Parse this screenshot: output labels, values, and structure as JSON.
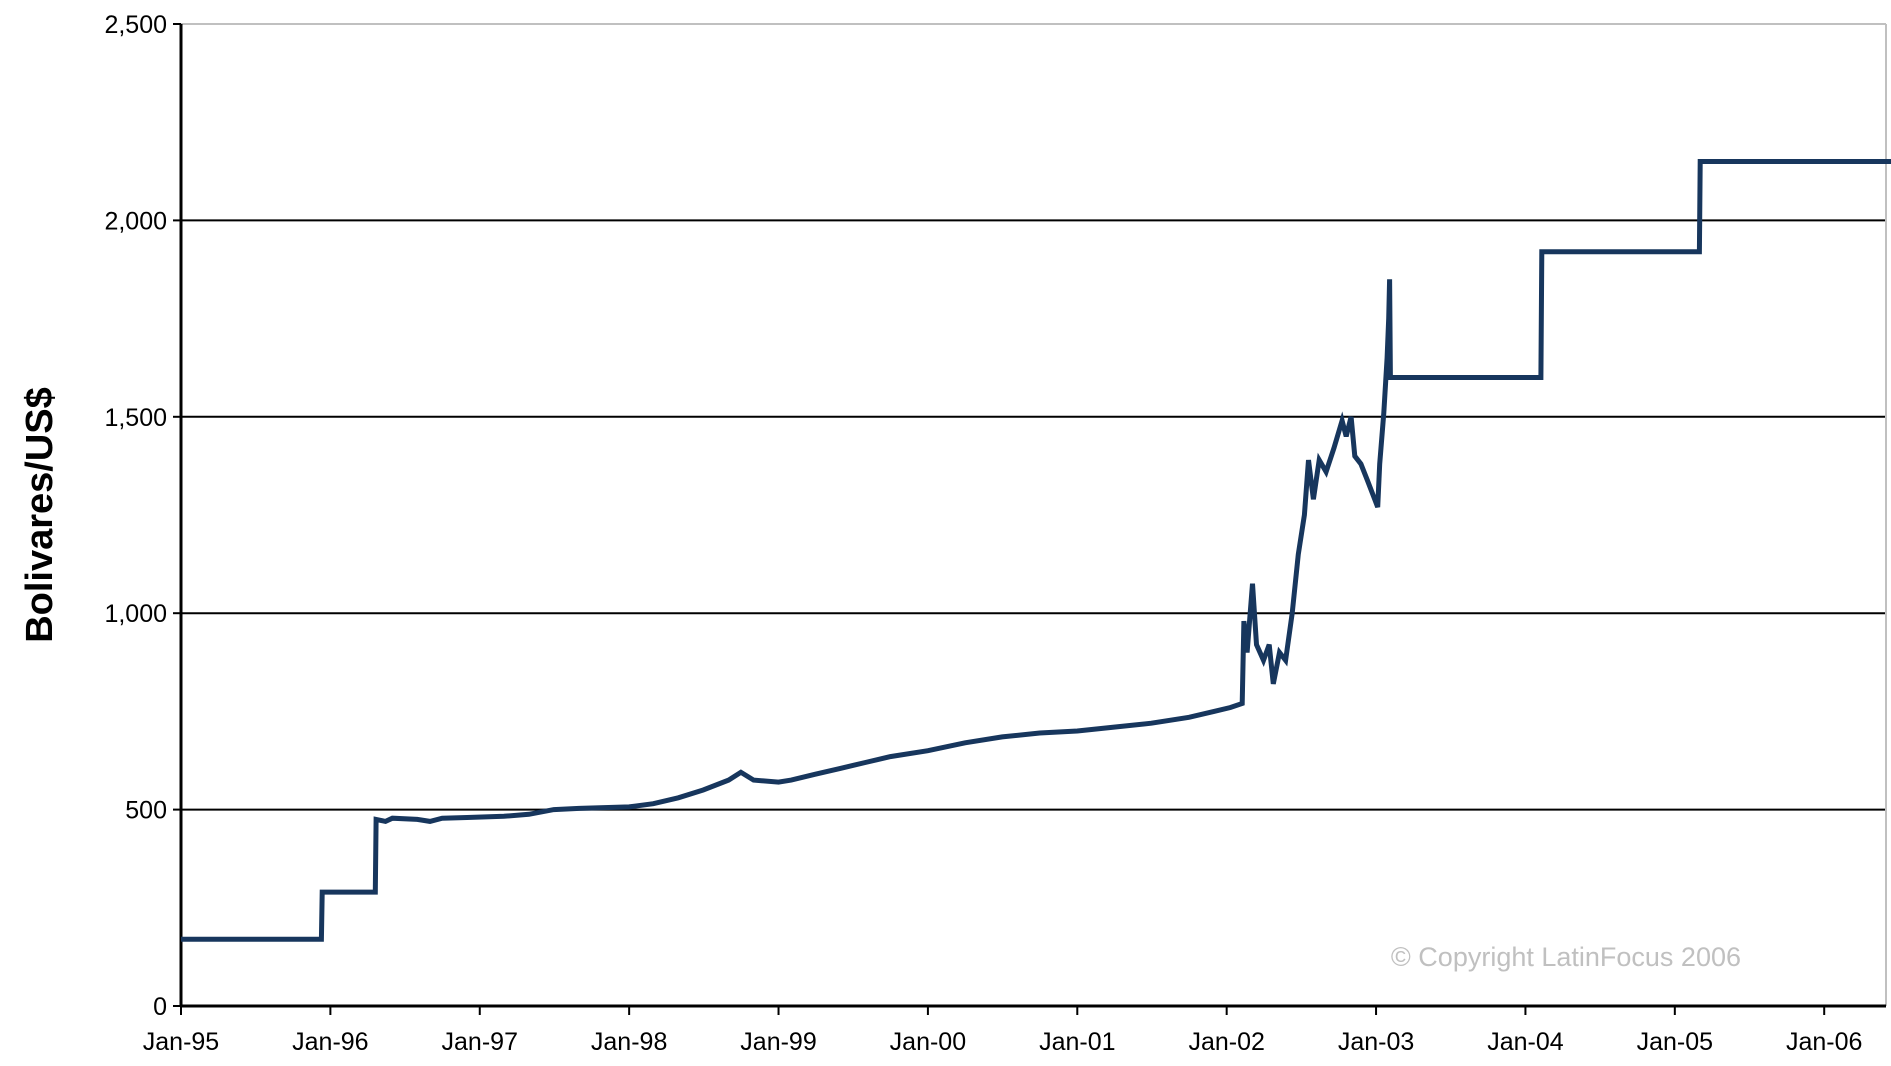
{
  "chart_data": {
    "type": "line",
    "title": "",
    "xlabel": "",
    "ylabel": "Bolivares/US$",
    "ylim": [
      0,
      2500
    ],
    "xlim": [
      "1995-01",
      "2006-06"
    ],
    "grid": "horizontal",
    "y_ticks": [
      {
        "value": 0,
        "label": "0"
      },
      {
        "value": 500,
        "label": "500"
      },
      {
        "value": 1000,
        "label": "1,000"
      },
      {
        "value": 1500,
        "label": "1,500"
      },
      {
        "value": 2000,
        "label": "2,000"
      },
      {
        "value": 2500,
        "label": "2,500"
      }
    ],
    "x_ticks": [
      {
        "date": "1995-01",
        "label": "Jan-95"
      },
      {
        "date": "1996-01",
        "label": "Jan-96"
      },
      {
        "date": "1997-01",
        "label": "Jan-97"
      },
      {
        "date": "1998-01",
        "label": "Jan-98"
      },
      {
        "date": "1999-01",
        "label": "Jan-99"
      },
      {
        "date": "2000-01",
        "label": "Jan-00"
      },
      {
        "date": "2001-01",
        "label": "Jan-01"
      },
      {
        "date": "2002-01",
        "label": "Jan-02"
      },
      {
        "date": "2003-01",
        "label": "Jan-03"
      },
      {
        "date": "2004-01",
        "label": "Jan-04"
      },
      {
        "date": "2005-01",
        "label": "Jan-05"
      },
      {
        "date": "2006-01",
        "label": "Jan-06"
      }
    ],
    "series": [
      {
        "color": "#17365d",
        "points": [
          [
            "1995-01-01",
            170
          ],
          [
            "1995-12-10",
            170
          ],
          [
            "1995-12-12",
            290
          ],
          [
            "1996-04-20",
            290
          ],
          [
            "1996-04-22",
            475
          ],
          [
            "1996-05-15",
            470
          ],
          [
            "1996-06-01",
            478
          ],
          [
            "1996-08-01",
            475
          ],
          [
            "1996-09-01",
            470
          ],
          [
            "1996-10-01",
            478
          ],
          [
            "1996-12-01",
            480
          ],
          [
            "1997-03-01",
            483
          ],
          [
            "1997-05-01",
            488
          ],
          [
            "1997-07-01",
            500
          ],
          [
            "1997-09-01",
            503
          ],
          [
            "1998-01-01",
            507
          ],
          [
            "1998-03-01",
            515
          ],
          [
            "1998-05-01",
            530
          ],
          [
            "1998-07-01",
            550
          ],
          [
            "1998-09-01",
            575
          ],
          [
            "1998-10-01",
            595
          ],
          [
            "1998-11-01",
            575
          ],
          [
            "1999-01-01",
            570
          ],
          [
            "1999-02-01",
            575
          ],
          [
            "1999-04-01",
            590
          ],
          [
            "1999-06-01",
            605
          ],
          [
            "1999-08-01",
            620
          ],
          [
            "1999-10-01",
            635
          ],
          [
            "2000-01-01",
            650
          ],
          [
            "2000-04-01",
            670
          ],
          [
            "2000-07-01",
            685
          ],
          [
            "2000-10-01",
            695
          ],
          [
            "2001-01-01",
            700
          ],
          [
            "2001-04-01",
            710
          ],
          [
            "2001-07-01",
            720
          ],
          [
            "2001-10-01",
            735
          ],
          [
            "2001-12-01",
            750
          ],
          [
            "2002-01-10",
            760
          ],
          [
            "2002-02-08",
            770
          ],
          [
            "2002-02-12",
            980
          ],
          [
            "2002-02-20",
            900
          ],
          [
            "2002-03-05",
            1075
          ],
          [
            "2002-03-15",
            920
          ],
          [
            "2002-04-01",
            880
          ],
          [
            "2002-04-15",
            920
          ],
          [
            "2002-04-25",
            820
          ],
          [
            "2002-05-10",
            900
          ],
          [
            "2002-05-25",
            880
          ],
          [
            "2002-06-10",
            1000
          ],
          [
            "2002-06-25",
            1150
          ],
          [
            "2002-07-10",
            1250
          ],
          [
            "2002-07-20",
            1390
          ],
          [
            "2002-08-01",
            1290
          ],
          [
            "2002-08-15",
            1390
          ],
          [
            "2002-09-01",
            1360
          ],
          [
            "2002-09-20",
            1420
          ],
          [
            "2002-10-10",
            1490
          ],
          [
            "2002-10-20",
            1450
          ],
          [
            "2002-11-01",
            1500
          ],
          [
            "2002-11-10",
            1400
          ],
          [
            "2002-11-25",
            1380
          ],
          [
            "2002-12-10",
            1340
          ],
          [
            "2002-12-25",
            1300
          ],
          [
            "2003-01-05",
            1270
          ],
          [
            "2003-01-10",
            1380
          ],
          [
            "2003-01-20",
            1510
          ],
          [
            "2003-01-28",
            1650
          ],
          [
            "2003-02-01",
            1750
          ],
          [
            "2003-02-03",
            1850
          ],
          [
            "2003-02-05",
            1600
          ],
          [
            "2004-02-08",
            1600
          ],
          [
            "2004-02-10",
            1920
          ],
          [
            "2005-03-02",
            1920
          ],
          [
            "2005-03-04",
            2150
          ],
          [
            "2006-06-30",
            2150
          ]
        ]
      }
    ],
    "annotations": [
      {
        "text": "© Copyright LatinFocus 2006",
        "position": "bottom-right"
      }
    ]
  }
}
